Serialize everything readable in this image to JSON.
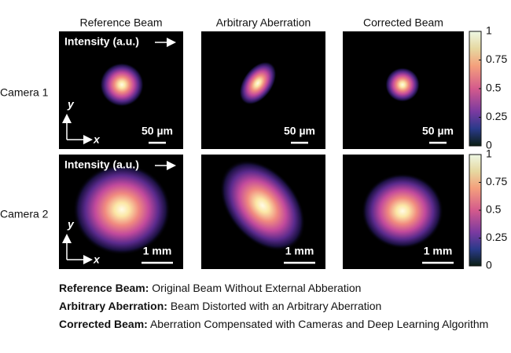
{
  "columns": [
    "Reference Beam",
    "Arbitrary Aberration",
    "Corrected Beam"
  ],
  "rows": [
    {
      "label": "Camera 1",
      "scale_bar": "50 µm"
    },
    {
      "label": "Camera 2",
      "scale_bar": "1 mm"
    }
  ],
  "intensity_label": "Intensity (a.u.)",
  "axis_labels": {
    "y": "y",
    "x": "x"
  },
  "colorbar": {
    "ticks": [
      0,
      0.25,
      0.5,
      0.75,
      1
    ]
  },
  "legend": [
    {
      "term": "Reference Beam:",
      "text": "Original Beam Without External Abberation"
    },
    {
      "term": "Arbitrary Aberration:",
      "text": "Beam Distorted with an Arbitrary Aberration"
    },
    {
      "term": "Corrected Beam:",
      "text": "Aberration Compensated with Cameras and Deep Learning Algorithm"
    }
  ]
}
